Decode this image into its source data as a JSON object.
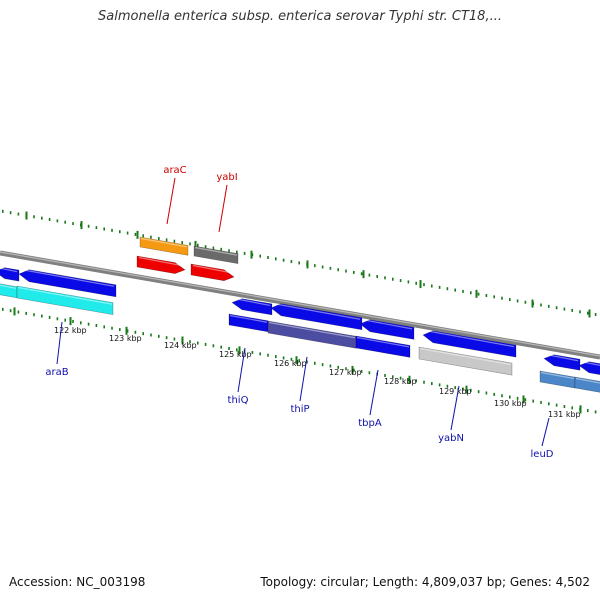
{
  "title": "Salmonella enterica subsp. enterica serovar Typhi str. CT18,...",
  "footer": {
    "accession": "Accession: NC_003198",
    "summary": "Topology: circular; Length: 4,809,037 bp; Genes: 4,502"
  },
  "colors": {
    "backbone": "#808080",
    "tick": "#1a7a1a",
    "forward_label": "#cc0000",
    "reverse_label": "#1010aa",
    "blue": "#0a0ae6",
    "red": "#ee0000",
    "orange": "#f59a12",
    "gray": "#6a6a6a",
    "cyan": "#20eaea",
    "lightgray": "#c8c8c8",
    "steel": "#4a86c8",
    "slate": "#4c4ca0"
  },
  "tick_labels": [
    "122 kbp",
    "123 kbp",
    "124 kbp",
    "125 kbp",
    "126 kbp",
    "127 kbp",
    "128 kbp",
    "129 kbp",
    "130 kbp",
    "131 kbp"
  ],
  "forward_genes": [
    {
      "label": "araC",
      "color": "orange"
    },
    {
      "label": "yabI",
      "color": "gray"
    }
  ],
  "reverse_genes": [
    {
      "label": "araB",
      "color": "cyan"
    },
    {
      "label": "thiQ",
      "color": "blue"
    },
    {
      "label": "thiP",
      "color": "slate"
    },
    {
      "label": "tbpA",
      "color": "blue"
    },
    {
      "label": "yabN",
      "color": "lightgray"
    },
    {
      "label": "leuD",
      "color": "steel"
    }
  ]
}
